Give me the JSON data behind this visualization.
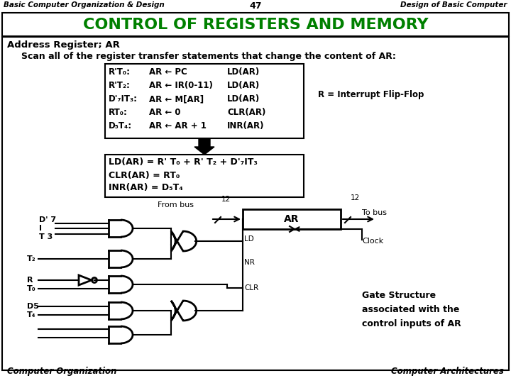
{
  "header_left": "Basic Computer Organization & Design",
  "header_center": "47",
  "header_right": "Design of Basic Computer",
  "title": "CONTROL OF REGISTERS AND MEMORY",
  "title_color": "#008000",
  "bg_color": "#ffffff",
  "footer_left": "Computer Organization",
  "footer_right": "Computer Architectures"
}
